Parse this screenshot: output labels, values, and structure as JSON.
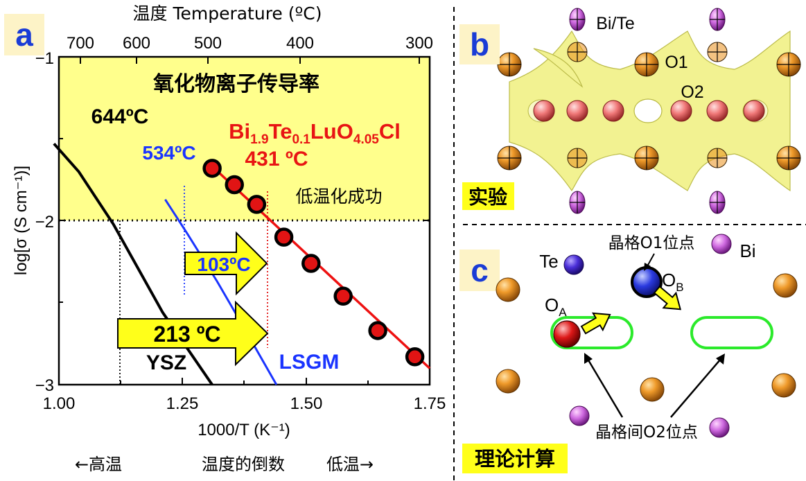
{
  "colors": {
    "highlight_yellow": "#ffff8c",
    "panel_label_bg": "#fdf3c7",
    "panel_label_fg": "#1a3cd6",
    "bi_te_red": "#ff1a1a",
    "data_point": "#e11414",
    "fit_line": "#ee1111",
    "lsgm": "#1a34ff",
    "ysz": "#000000",
    "arrow_fill": "#ffff1a",
    "interstitial_green": "#2bea2b",
    "orange_atom": "#e9901c",
    "purple_atom": "#c86ad8",
    "oxygen_pink": "#f2777a",
    "blue_atom": "#2a34d8",
    "red_atom": "#d81414",
    "tag_yellow": "#ffff1a"
  },
  "panel_a": {
    "label": "a",
    "top_axis_title": "温度 Temperature (ºC)",
    "top_ticks": [
      "700",
      "600",
      "500",
      "400",
      "300"
    ],
    "region_title": "氧化物离子传导率",
    "material_main": "Bi",
    "material_sub1": "1.9",
    "material_mid": "Te",
    "material_sub2": "0.1",
    "material_mid2": "LuO",
    "material_sub3": "4.05",
    "material_end": "Cl",
    "temp_ysz": "644ºC",
    "temp_lsgm": "534ºC",
    "temp_new": "431 ºC",
    "success_text": "低温化成功",
    "arrow1_label": "103ºC",
    "arrow2_label": "213 ºC",
    "ysz_label": "YSZ",
    "lsgm_label": "LSGM",
    "ylabel": "log[σ (S cm⁻¹)]",
    "xlabel": "1000/T (K⁻¹)",
    "bottom_left": "←高温",
    "bottom_mid": "温度的倒数",
    "bottom_right": "低温→"
  },
  "chart_data": {
    "type": "scatter",
    "xlabel": "1000/T (K⁻¹)",
    "ylabel": "log[σ (S cm⁻¹)]",
    "xlim": [
      1.0,
      1.75
    ],
    "ylim": [
      -3,
      -1
    ],
    "x_ticks": [
      "1.00",
      "1.25",
      "1.50",
      "1.75"
    ],
    "y_ticks": [
      "−1",
      "−2",
      "−3"
    ],
    "secondary_x_axis": "温度 Temperature (ºC)",
    "series": [
      {
        "name": "Bi1.9Te0.1LuO4.05Cl",
        "x": [
          1.31,
          1.355,
          1.4,
          1.455,
          1.51,
          1.575,
          1.645,
          1.72
        ],
        "y": [
          -1.68,
          -1.78,
          -1.9,
          -2.1,
          -2.26,
          -2.46,
          -2.67,
          -2.83
        ]
      },
      {
        "name": "YSZ",
        "x": [
          0.99,
          1.04,
          1.11,
          1.21,
          1.31
        ],
        "y": [
          -1.53,
          -1.7,
          -2.02,
          -2.56,
          -3.0
        ]
      },
      {
        "name": "LSGM",
        "x": [
          1.215,
          1.26,
          1.32,
          1.37,
          1.44
        ],
        "y": [
          -1.87,
          -2.08,
          -2.37,
          -2.63,
          -3.0
        ]
      }
    ],
    "fit_line": {
      "x": [
        1.3,
        1.75
      ],
      "y": [
        -1.64,
        -2.9
      ]
    },
    "threshold_line_y": -2,
    "highlight_region_y": [
      -2,
      -1
    ],
    "annotated_points": [
      {
        "label": "644ºC",
        "x": 1.11,
        "y": -2
      },
      {
        "label": "534ºC",
        "x": 1.245,
        "y": -2
      },
      {
        "label": "431 ºC",
        "x": 1.42,
        "y": -2
      }
    ]
  },
  "panel_b": {
    "label": "b",
    "site_bi_te": "Bi/Te",
    "site_o1": "O1",
    "site_o2": "O2",
    "tag": "实验"
  },
  "panel_c": {
    "label": "c",
    "o1_site": "晶格O1位点",
    "te_label": "Te",
    "bi_label": "Bi",
    "oa_main": "O",
    "oa_sub": "A",
    "ob_main": "O",
    "ob_sub": "B",
    "o2_site": "晶格间O2位点",
    "tag": "理论计算"
  }
}
